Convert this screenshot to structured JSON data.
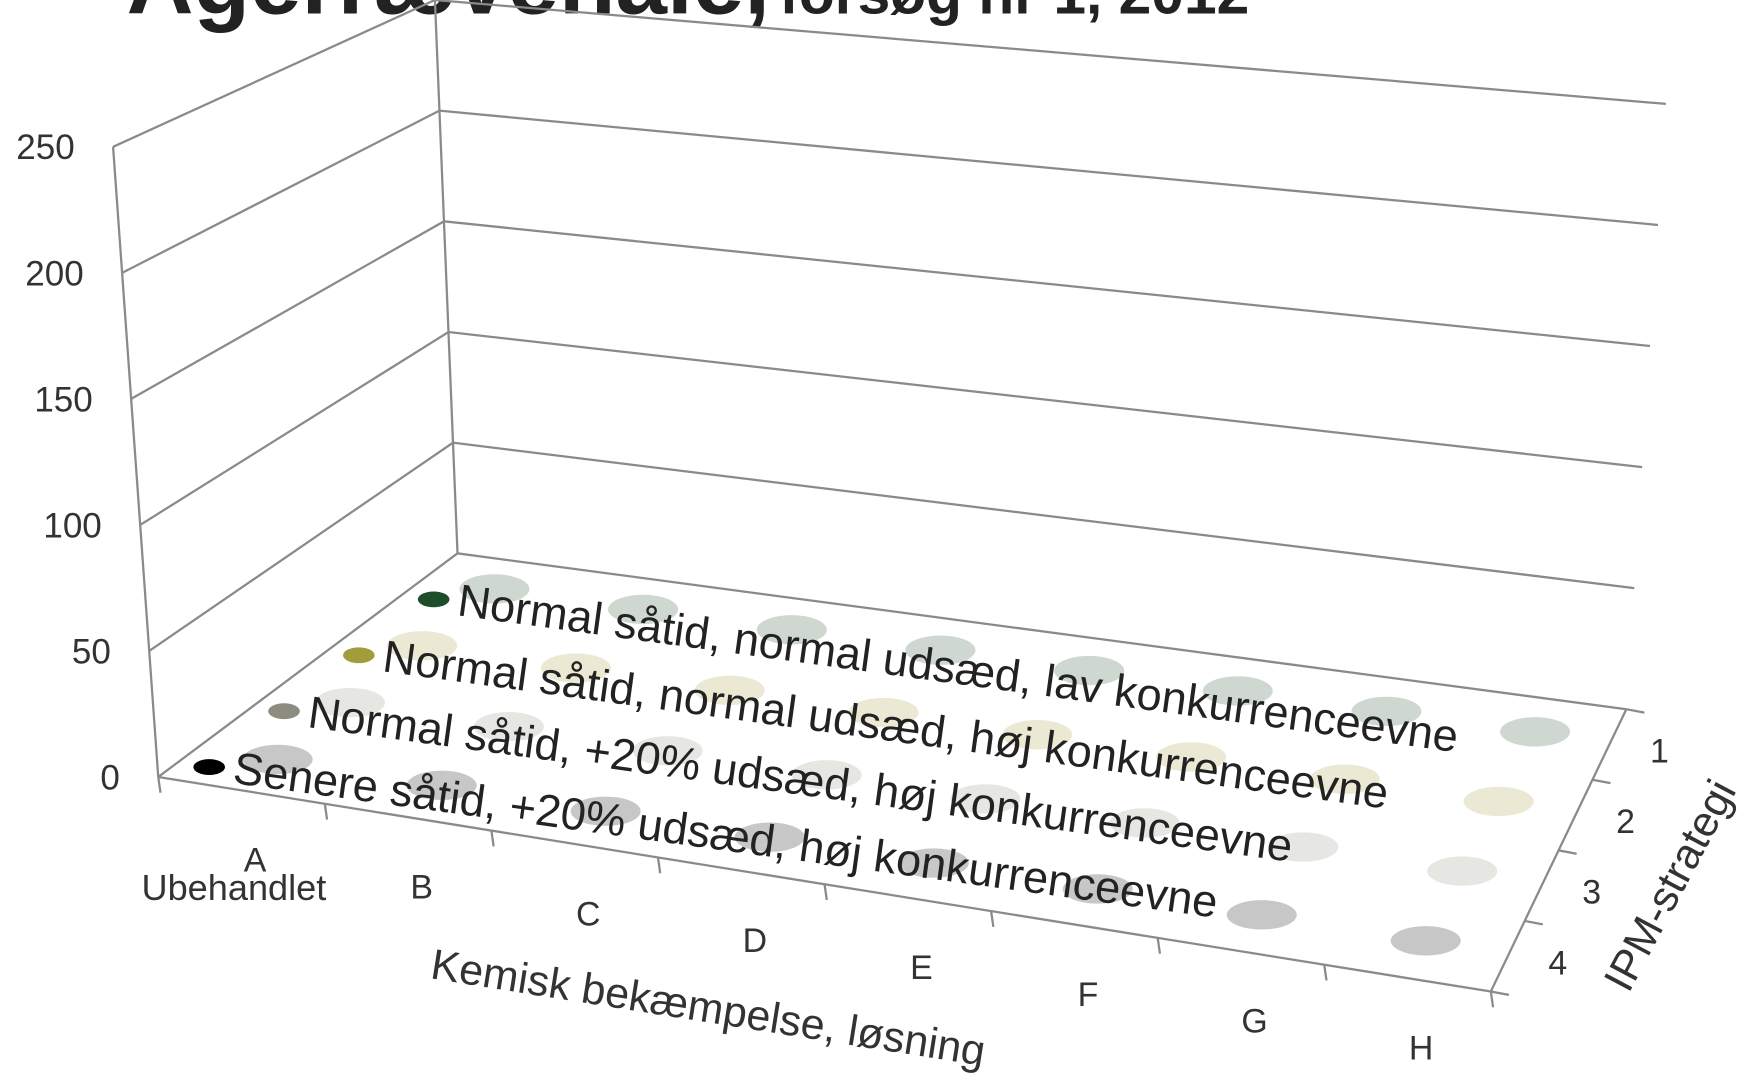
{
  "chart_data": {
    "type": "bar3d",
    "title": "Agerrævehale,",
    "subtitle": "forsøg nr 1, 2012",
    "x_label": "Kemisk bekæmpelse, løsning",
    "z_label": "IPM-strategi",
    "categories": [
      "A",
      "B",
      "C",
      "D",
      "E",
      "F",
      "G",
      "H"
    ],
    "annotations": [
      {
        "text": "Ubehandlet"
      }
    ],
    "series": [
      {
        "name": "Normal såtid, normal udsæd, lav konkurrenceevne",
        "color": "#1e4d2b",
        "values": [
          1,
          1,
          1,
          1,
          1,
          1,
          1,
          1
        ]
      },
      {
        "name": "Normal såtid, normal udsæd, høj konkurrenceevne",
        "color": "#a39c3a",
        "values": [
          1,
          1,
          1,
          1,
          1,
          1,
          1,
          1
        ]
      },
      {
        "name": "Normal såtid, +20% udsæd, høj konkurrenceevne",
        "color": "#8c8c80",
        "values": [
          1,
          1,
          1,
          1,
          1,
          1,
          1,
          1
        ]
      },
      {
        "name": "Senere såtid, +20% udsæd, høj konkurrenceevne",
        "color": "#000000",
        "values": [
          1,
          1,
          1,
          1,
          1,
          1,
          1,
          1
        ]
      }
    ],
    "ylim": [
      0,
      250
    ],
    "yticks": [
      0,
      50,
      100,
      150,
      200,
      250
    ],
    "zticks": [
      1,
      2,
      3,
      4
    ],
    "grid": true
  }
}
